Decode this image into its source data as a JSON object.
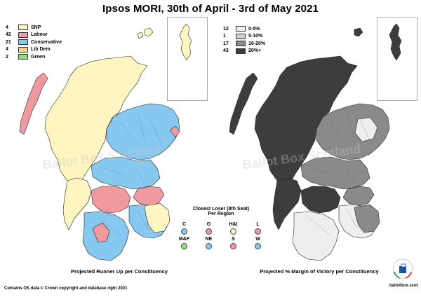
{
  "title": "Ipsos MORI, 30th of April - 3rd of May 2021",
  "left_legend": [
    {
      "count": "4",
      "label": "SNP",
      "color": "#fff5c0"
    },
    {
      "count": "42",
      "label": "Labour",
      "color": "#f09aa0"
    },
    {
      "count": "21",
      "label": "Conservative",
      "color": "#87c8f0"
    },
    {
      "count": "4",
      "label": "Lib Dem",
      "color": "#f6d38a"
    },
    {
      "count": "2",
      "label": "Green",
      "color": "#8fdc7e"
    }
  ],
  "right_legend": [
    {
      "count": "12",
      "label": "0-5%",
      "color": "#eeeeee"
    },
    {
      "count": "1",
      "label": "5-10%",
      "color": "#cfcfcf"
    },
    {
      "count": "17",
      "label": "10-20%",
      "color": "#8a8a8a"
    },
    {
      "count": "43",
      "label": "20%+",
      "color": "#3d3d3d"
    }
  ],
  "closest_loser": {
    "title": "Closest Loser (8th Seat)",
    "subtitle": "Per Region",
    "regions": [
      {
        "label": "C",
        "color": "#87c8f0"
      },
      {
        "label": "G",
        "color": "#f09aa0"
      },
      {
        "label": "H&I",
        "color": "#fff5c0"
      },
      {
        "label": "L",
        "color": "#f09aa0"
      },
      {
        "label": "M&F",
        "color": "#8fdc7e"
      },
      {
        "label": "NE",
        "color": "#87c8f0"
      },
      {
        "label": "S",
        "color": "#f09aa0"
      },
      {
        "label": "W",
        "color": "#87c8f0"
      }
    ]
  },
  "captions": {
    "left": "Projected Runner Up per Constituency",
    "right": "Projected % Margin of Victory per Constituency"
  },
  "credit": "Contains OS data © Crown copyright and database right 2021",
  "watermark": "Ballot Box Scotland",
  "site": "ballotbox.scot",
  "colors": {
    "snp": "#fff5c0",
    "labour": "#f09aa0",
    "conservative": "#87c8f0",
    "libdem": "#f6d38a",
    "green": "#8fdc7e",
    "m0": "#eeeeee",
    "m1": "#cfcfcf",
    "m2": "#8a8a8a",
    "m3": "#3d3d3d"
  }
}
